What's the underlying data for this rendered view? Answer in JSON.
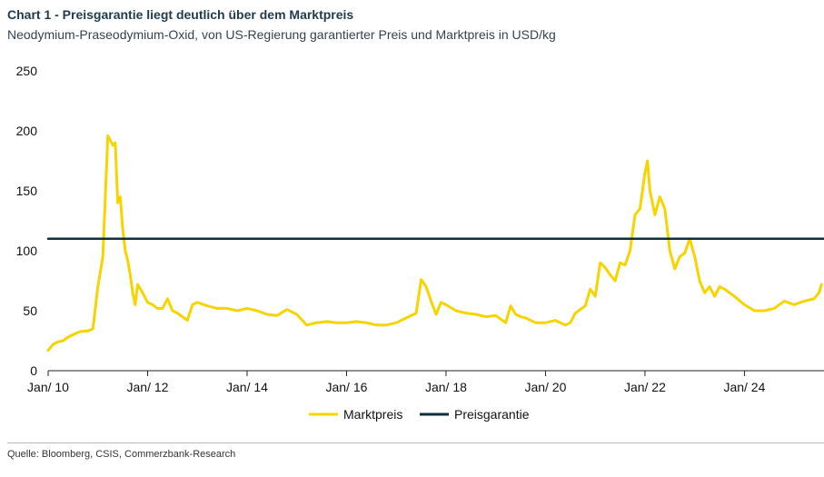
{
  "header": {
    "title": "Chart 1 - Preisgarantie liegt deutlich über dem Marktpreis",
    "subtitle": "Neodymium-Praseodymium-Oxid, von US-Regierung garantierter Preis und Marktpreis in USD/kg"
  },
  "footer": {
    "source": "Quelle: Bloomberg, CSIS, Commerzbank-Research"
  },
  "colors": {
    "marktpreis": "#f5d400",
    "preisgarantie": "#0d2e3b",
    "axis": "#222222"
  },
  "chart_data": {
    "type": "line",
    "title": "Chart 1 - Preisgarantie liegt deutlich über dem Marktpreis",
    "ylabel": "USD/kg",
    "ylim": [
      0,
      250
    ],
    "yticks": [
      0,
      50,
      100,
      150,
      200,
      250
    ],
    "xlim": [
      2010.0,
      2025.6
    ],
    "xticks": [
      {
        "value": 2010,
        "label": "Jan/ 10"
      },
      {
        "value": 2012,
        "label": "Jan/ 12"
      },
      {
        "value": 2014,
        "label": "Jan/ 14"
      },
      {
        "value": 2016,
        "label": "Jan/ 16"
      },
      {
        "value": 2018,
        "label": "Jan/ 18"
      },
      {
        "value": 2020,
        "label": "Jan/ 20"
      },
      {
        "value": 2022,
        "label": "Jan/ 22"
      },
      {
        "value": 2024,
        "label": "Jan/ 24"
      }
    ],
    "legend": [
      "Marktpreis",
      "Preisgarantie"
    ],
    "series": [
      {
        "name": "Marktpreis",
        "x": [
          2010.0,
          2010.1,
          2010.2,
          2010.3,
          2010.4,
          2010.5,
          2010.6,
          2010.7,
          2010.8,
          2010.9,
          2011.0,
          2011.1,
          2011.2,
          2011.3,
          2011.35,
          2011.4,
          2011.45,
          2011.5,
          2011.55,
          2011.6,
          2011.65,
          2011.7,
          2011.75,
          2011.8,
          2011.9,
          2012.0,
          2012.1,
          2012.2,
          2012.3,
          2012.4,
          2012.5,
          2012.6,
          2012.7,
          2012.8,
          2012.9,
          2013.0,
          2013.2,
          2013.4,
          2013.6,
          2013.8,
          2014.0,
          2014.2,
          2014.4,
          2014.6,
          2014.8,
          2015.0,
          2015.2,
          2015.4,
          2015.6,
          2015.8,
          2016.0,
          2016.2,
          2016.4,
          2016.6,
          2016.8,
          2017.0,
          2017.2,
          2017.4,
          2017.5,
          2017.6,
          2017.7,
          2017.8,
          2017.9,
          2018.0,
          2018.2,
          2018.4,
          2018.6,
          2018.8,
          2019.0,
          2019.2,
          2019.3,
          2019.4,
          2019.5,
          2019.6,
          2019.8,
          2020.0,
          2020.2,
          2020.4,
          2020.5,
          2020.6,
          2020.8,
          2020.9,
          2021.0,
          2021.1,
          2021.2,
          2021.3,
          2021.4,
          2021.5,
          2021.6,
          2021.7,
          2021.8,
          2021.9,
          2021.95,
          2022.0,
          2022.05,
          2022.1,
          2022.2,
          2022.3,
          2022.4,
          2022.5,
          2022.6,
          2022.7,
          2022.8,
          2022.9,
          2023.0,
          2023.1,
          2023.2,
          2023.3,
          2023.4,
          2023.5,
          2023.6,
          2023.8,
          2024.0,
          2024.2,
          2024.4,
          2024.6,
          2024.8,
          2025.0,
          2025.2,
          2025.4,
          2025.5,
          2025.55
        ],
        "values": [
          17,
          22,
          24,
          25,
          28,
          30,
          32,
          33,
          33,
          35,
          70,
          95,
          196,
          188,
          190,
          140,
          145,
          118,
          100,
          92,
          80,
          65,
          55,
          72,
          65,
          57,
          55,
          52,
          52,
          60,
          50,
          48,
          45,
          42,
          55,
          57,
          54,
          52,
          52,
          50,
          52,
          50,
          47,
          46,
          51,
          47,
          38,
          40,
          41,
          40,
          40,
          41,
          40,
          38,
          38,
          40,
          44,
          48,
          76,
          70,
          58,
          47,
          57,
          55,
          50,
          48,
          47,
          45,
          46,
          40,
          54,
          47,
          45,
          44,
          40,
          40,
          42,
          38,
          40,
          48,
          54,
          68,
          62,
          90,
          86,
          80,
          75,
          90,
          88,
          100,
          130,
          135,
          150,
          165,
          175,
          150,
          130,
          145,
          135,
          100,
          85,
          95,
          98,
          110,
          95,
          75,
          65,
          70,
          62,
          70,
          68,
          62,
          55,
          50,
          50,
          52,
          58,
          55,
          58,
          60,
          65,
          72
        ]
      },
      {
        "name": "Preisgarantie",
        "x": [
          2010.0,
          2025.6
        ],
        "values": [
          110,
          110
        ]
      }
    ]
  }
}
